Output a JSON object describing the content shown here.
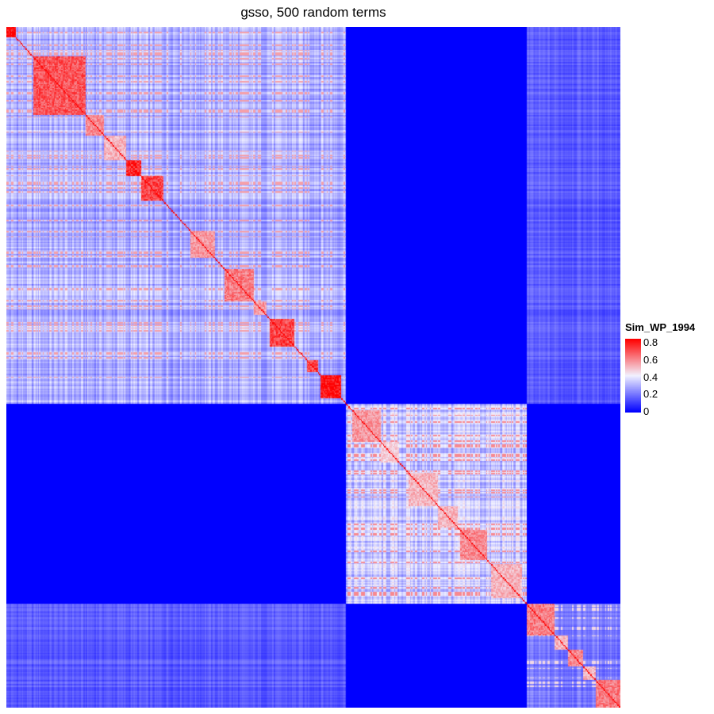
{
  "chart_data": {
    "type": "heatmap",
    "title": "gsso, 500 random terms",
    "n_terms": 500,
    "legend": {
      "title": "Sim_WP_1994",
      "ticks": [
        {
          "value": 0.8,
          "label": "0.8"
        },
        {
          "value": 0.6,
          "label": "0.6"
        },
        {
          "value": 0.4,
          "label": "0.4"
        },
        {
          "value": 0.2,
          "label": "0.2"
        },
        {
          "value": 0,
          "label": "0"
        }
      ],
      "range": [
        0,
        0.85
      ],
      "placement": "right"
    },
    "colors": {
      "low": "#0000ff",
      "mid": "#f2f2ff",
      "high": "#ff0000"
    },
    "grid": false,
    "cluster_groups": [
      {
        "id": "A",
        "start": 0,
        "end": 277
      },
      {
        "id": "B",
        "start": 277,
        "end": 424
      },
      {
        "id": "C",
        "start": 424,
        "end": 500
      }
    ],
    "group_similarity": {
      "A-A": 0.32,
      "B-B": 0.36,
      "C-C": 0.22,
      "A-B": 0.0,
      "B-C": 0.0,
      "A-C": 0.16
    },
    "subclusters": [
      {
        "start": 0,
        "end": 8,
        "value": 0.85
      },
      {
        "start": 22,
        "end": 65,
        "value": 0.72
      },
      {
        "start": 65,
        "end": 80,
        "value": 0.62
      },
      {
        "start": 80,
        "end": 98,
        "value": 0.55
      },
      {
        "start": 98,
        "end": 110,
        "value": 0.8
      },
      {
        "start": 110,
        "end": 128,
        "value": 0.75
      },
      {
        "start": 150,
        "end": 170,
        "value": 0.6
      },
      {
        "start": 178,
        "end": 202,
        "value": 0.65
      },
      {
        "start": 202,
        "end": 212,
        "value": 0.6
      },
      {
        "start": 215,
        "end": 235,
        "value": 0.75
      },
      {
        "start": 245,
        "end": 254,
        "value": 0.75
      },
      {
        "start": 256,
        "end": 273,
        "value": 0.85
      },
      {
        "start": 282,
        "end": 305,
        "value": 0.6
      },
      {
        "start": 305,
        "end": 320,
        "value": 0.5
      },
      {
        "start": 328,
        "end": 352,
        "value": 0.55
      },
      {
        "start": 352,
        "end": 368,
        "value": 0.55
      },
      {
        "start": 370,
        "end": 392,
        "value": 0.62
      },
      {
        "start": 395,
        "end": 420,
        "value": 0.55
      },
      {
        "start": 424,
        "end": 447,
        "value": 0.65
      },
      {
        "start": 447,
        "end": 458,
        "value": 0.55
      },
      {
        "start": 458,
        "end": 470,
        "value": 0.62
      },
      {
        "start": 470,
        "end": 480,
        "value": 0.55
      },
      {
        "start": 480,
        "end": 500,
        "value": 0.65
      }
    ],
    "diagonal_value": 1.0
  }
}
